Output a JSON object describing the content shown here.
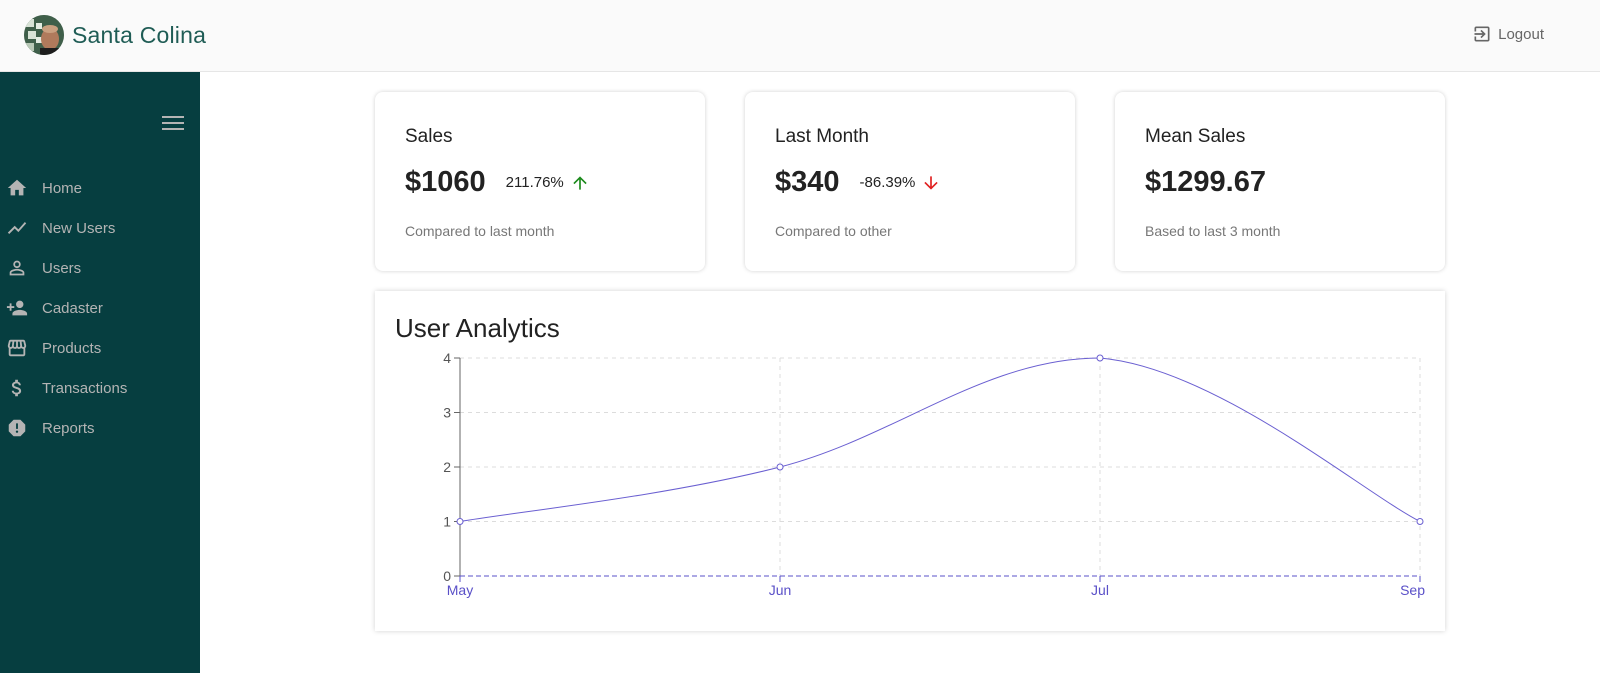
{
  "header": {
    "brand_name": "Santa Colina",
    "logout_label": "Logout"
  },
  "sidebar": {
    "items": [
      {
        "label": "Home",
        "icon": "home-icon"
      },
      {
        "label": "New Users",
        "icon": "trending-icon"
      },
      {
        "label": "Users",
        "icon": "person-icon"
      },
      {
        "label": "Cadaster",
        "icon": "person-add-icon"
      },
      {
        "label": "Products",
        "icon": "store-icon"
      },
      {
        "label": "Transactions",
        "icon": "dollar-icon"
      },
      {
        "label": "Reports",
        "icon": "report-icon"
      }
    ]
  },
  "cards": [
    {
      "title": "Sales",
      "value": "$1060",
      "rate": "211.76%",
      "trend": "up",
      "subtitle": "Compared to last month"
    },
    {
      "title": "Last Month",
      "value": "$340",
      "rate": "-86.39%",
      "trend": "down",
      "subtitle": "Compared to other"
    },
    {
      "title": "Mean Sales",
      "value": "$1299.67",
      "rate": "",
      "trend": "",
      "subtitle": "Based to last 3 month"
    }
  ],
  "colors": {
    "sidebar_bg": "#063e40",
    "brand_text": "#1f5c55",
    "trend_up": "#1b8a1b",
    "trend_down": "#e02020",
    "line": "#6a5fd1",
    "x_tick": "#5a50c8"
  },
  "chart_title": "User Analytics",
  "chart_data": {
    "type": "line",
    "title": "User Analytics",
    "x": [
      "May",
      "Jun",
      "Jul",
      "Sep"
    ],
    "series": [
      {
        "values": [
          1,
          2,
          4,
          1
        ]
      }
    ],
    "ylim": [
      0,
      4
    ],
    "yticks": [
      0,
      1,
      2,
      3,
      4
    ],
    "grid": true,
    "legend": "none",
    "curve": "smooth"
  }
}
